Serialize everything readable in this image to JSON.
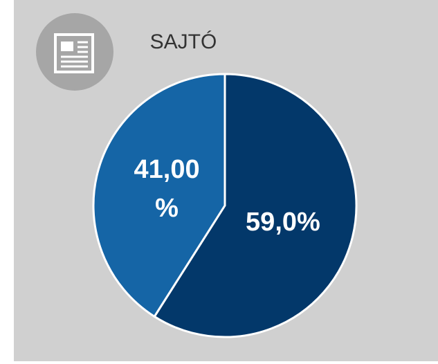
{
  "chart_data": {
    "type": "pie",
    "title": "SAJTÓ",
    "values": [
      59.0,
      41.0
    ],
    "value_labels": [
      "59,0%",
      "41,00 %"
    ],
    "colors": [
      "#03386a",
      "#1565a6"
    ]
  }
}
